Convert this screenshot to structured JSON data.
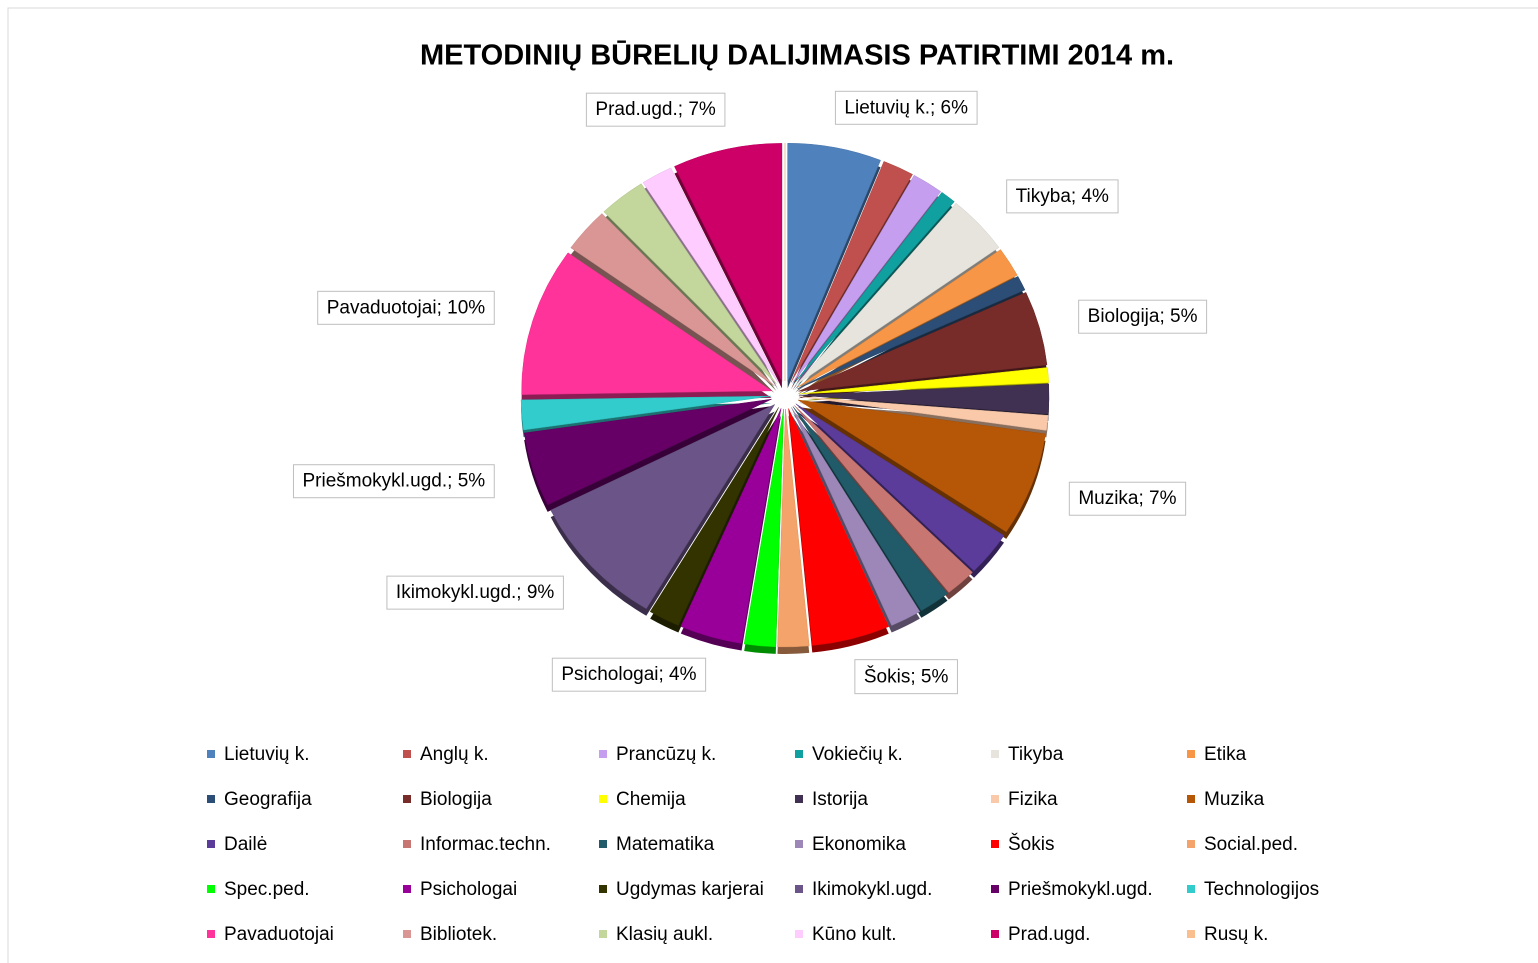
{
  "chart_data": {
    "type": "pie",
    "title": "METODINIŲ BŪRELIŲ DALIJIMASIS PATIRTIMI 2014 m.",
    "categories": [
      "Lietuvių k.",
      "Anglų k.",
      "Prancūzų k.",
      "Vokiečių k.",
      "Tikyba",
      "Etika",
      "Geografija",
      "Biologija",
      "Chemija",
      "Istorija",
      "Fizika",
      "Muzika",
      "Dailė",
      "Informac.techn.",
      "Matematika",
      "Ekonomika",
      "Šokis",
      "Social.ped.",
      "Spec.ped.",
      "Psichologai",
      "Ugdymas karjerai",
      "Ikimokykl.ugd.",
      "Priešmokykl.ugd.",
      "Technologijos",
      "Pavaduotojai",
      "Bibliotek.",
      "Klasių aukl.",
      "Kūno kult.",
      "Prad.ugd.",
      "Rusų k."
    ],
    "values": [
      6,
      2,
      2,
      1,
      4,
      2,
      1,
      5,
      1,
      2,
      1,
      7,
      3,
      2,
      2,
      2,
      5,
      2,
      2,
      4,
      2,
      9,
      5,
      2,
      10,
      3,
      3,
      2,
      7,
      0
    ],
    "value_labels": [
      "Lietuvių k.; 6%",
      null,
      null,
      null,
      "Tikyba; 4%",
      null,
      null,
      "Biologija; 5%",
      null,
      null,
      null,
      "Muzika; 7%",
      null,
      null,
      null,
      null,
      "Šokis; 5%",
      null,
      null,
      "Psichologai; 4%",
      null,
      "Ikimokykl.ugd.; 9%",
      "Priešmokykl.ugd.; 5%",
      null,
      "Pavaduotojai; 10%",
      null,
      null,
      null,
      "Prad.ugd.; 7%",
      null
    ],
    "colors": [
      "#4f81bd",
      "#c0504d",
      "#c69ef0",
      "#10a0a0",
      "#e6e4dc",
      "#f79646",
      "#2c4d75",
      "#772c2a",
      "#ffff00",
      "#403152",
      "#f9c9aa",
      "#b65708",
      "#5c3c9b",
      "#c87671",
      "#215a68",
      "#9c87b8",
      "#ff0000",
      "#f4a46a",
      "#00ff00",
      "#990099",
      "#333300",
      "#6b5487",
      "#660066",
      "#33cccc",
      "#ff3399",
      "#d99694",
      "#c3d69b",
      "#ffccff",
      "#cc0066",
      "#fabf8f"
    ],
    "legend": "bottom"
  }
}
